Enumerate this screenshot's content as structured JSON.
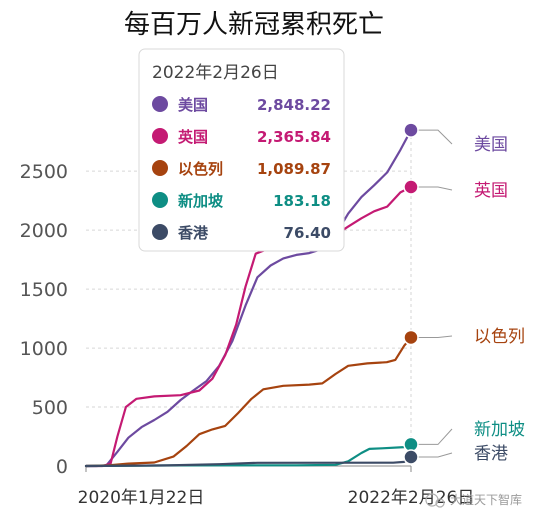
{
  "chart_data": {
    "type": "line",
    "title": "每百万人新冠累积死亡",
    "xlabel": "",
    "ylabel": "",
    "x_ticks": [
      "2020年1月22日",
      "2022年2月26日"
    ],
    "y_ticks": [
      0,
      500,
      1000,
      1500,
      2000,
      2500
    ],
    "ylim": [
      0,
      2900
    ],
    "grid": true,
    "legend": "tooltip-top-left",
    "tooltip": {
      "date": "2022年2月26日",
      "rows": [
        {
          "name": "美国",
          "value": "2,848.22",
          "color": "#6d4aa0"
        },
        {
          "name": "英国",
          "value": "2,365.84",
          "color": "#c41a73"
        },
        {
          "name": "以色列",
          "value": "1,089.87",
          "color": "#a6430f"
        },
        {
          "name": "新加坡",
          "value": "183.18",
          "color": "#0e8e84"
        },
        {
          "name": "香港",
          "value": "76.40",
          "color": "#3c4b66"
        }
      ]
    },
    "series": [
      {
        "name": "美国",
        "color": "#6d4aa0",
        "last_value": 2848.22,
        "x": [
          "2020-01-22",
          "2020-02-15",
          "2020-03-10",
          "2020-04-05",
          "2020-05-01",
          "2020-06-01",
          "2020-07-01",
          "2020-08-01",
          "2020-09-01",
          "2020-10-01",
          "2020-11-01",
          "2020-12-01",
          "2021-01-01",
          "2021-02-01",
          "2021-03-01",
          "2021-04-01",
          "2021-05-01",
          "2021-06-01",
          "2021-07-01",
          "2021-08-01",
          "2021-09-01",
          "2021-10-01",
          "2021-11-01",
          "2021-12-01",
          "2022-01-01",
          "2022-02-01",
          "2022-02-26"
        ],
        "y": [
          0,
          0,
          5,
          120,
          240,
          330,
          390,
          460,
          560,
          640,
          720,
          850,
          1060,
          1360,
          1600,
          1700,
          1760,
          1790,
          1805,
          1840,
          1960,
          2140,
          2280,
          2380,
          2490,
          2680,
          2848.22
        ]
      },
      {
        "name": "英国",
        "color": "#c41a73",
        "last_value": 2365.84,
        "x": [
          "2020-01-22",
          "2020-03-01",
          "2020-03-20",
          "2020-04-05",
          "2020-04-25",
          "2020-05-20",
          "2020-07-01",
          "2020-09-01",
          "2020-10-15",
          "2020-11-15",
          "2020-12-15",
          "2021-01-10",
          "2021-02-01",
          "2021-02-25",
          "2021-04-01",
          "2021-06-01",
          "2021-08-01",
          "2021-09-01",
          "2021-10-01",
          "2021-11-01",
          "2021-12-01",
          "2022-01-01",
          "2022-02-01",
          "2022-02-26"
        ],
        "y": [
          0,
          0,
          20,
          250,
          500,
          570,
          590,
          600,
          640,
          740,
          940,
          1200,
          1520,
          1800,
          1850,
          1860,
          1900,
          1960,
          2030,
          2100,
          2160,
          2200,
          2320,
          2365.84
        ]
      },
      {
        "name": "以色列",
        "color": "#a6430f",
        "last_value": 1089.87,
        "x": [
          "2020-01-22",
          "2020-03-15",
          "2020-05-01",
          "2020-07-01",
          "2020-08-15",
          "2020-09-15",
          "2020-10-15",
          "2020-11-15",
          "2020-12-15",
          "2021-01-15",
          "2021-02-15",
          "2021-03-15",
          "2021-05-01",
          "2021-07-01",
          "2021-08-01",
          "2021-09-01",
          "2021-10-01",
          "2021-11-15",
          "2021-12-31",
          "2022-01-20",
          "2022-02-10",
          "2022-02-26"
        ],
        "y": [
          0,
          5,
          20,
          30,
          80,
          170,
          270,
          310,
          340,
          450,
          570,
          650,
          680,
          690,
          700,
          780,
          850,
          870,
          880,
          900,
          1020,
          1089.87
        ]
      },
      {
        "name": "新加坡",
        "color": "#0e8e84",
        "last_value": 183.18,
        "x": [
          "2020-01-22",
          "2020-09-01",
          "2021-06-01",
          "2021-09-01",
          "2021-10-01",
          "2021-11-01",
          "2021-11-20",
          "2021-12-20",
          "2022-02-10",
          "2022-02-26"
        ],
        "y": [
          0,
          5,
          6,
          10,
          40,
          110,
          145,
          150,
          160,
          183.18
        ]
      },
      {
        "name": "香港",
        "color": "#3c4b66",
        "last_value": 76.4,
        "x": [
          "2020-01-22",
          "2020-08-01",
          "2020-12-01",
          "2021-03-01",
          "2022-01-15",
          "2022-02-10",
          "2022-02-26"
        ],
        "y": [
          0,
          5,
          15,
          27,
          28,
          35,
          76.4
        ]
      }
    ]
  },
  "watermark": "大道天下智库"
}
